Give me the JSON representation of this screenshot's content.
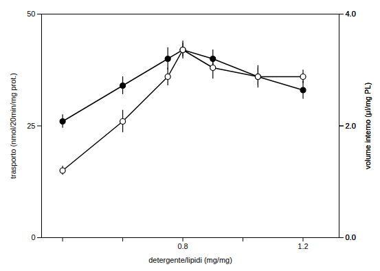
{
  "chart_data": {
    "type": "line",
    "x": [
      0.4,
      0.6,
      0.75,
      0.8,
      0.9,
      1.05,
      1.2
    ],
    "series": [
      {
        "values": [
          26,
          34,
          40,
          42,
          40,
          36,
          33
        ],
        "yerr": [
          1.5,
          2.0,
          2.5,
          1.5,
          2.0,
          2.5,
          2.0
        ],
        "color": "black",
        "marker": "circle"
      },
      {
        "values": [
          15,
          26,
          36,
          42,
          38,
          36,
          36
        ],
        "yerr": [
          1.0,
          2.5,
          2.0,
          2.0,
          2.5,
          2.0,
          1.5
        ],
        "color": "black",
        "marker": "open_circle"
      }
    ],
    "xlabel": "detergente/lipidi (mg/mg)",
    "ylabel": "trasporto (nmol/20min/mg prot.)",
    "y2label": "volume interno (μl/mg PL)",
    "xlim": [
      0.33,
      1.32
    ],
    "xticks": [
      {
        "value": 0.4,
        "label": null
      },
      {
        "value": 0.6,
        "label": null
      },
      0.8,
      {
        "value": 1.0,
        "label": null
      },
      1.2
    ],
    "ylim": [
      0,
      50
    ],
    "yticks": [
      0,
      25,
      50
    ],
    "y2lim": [
      0,
      4
    ],
    "y2ticks": [
      0,
      2,
      4
    ]
  }
}
